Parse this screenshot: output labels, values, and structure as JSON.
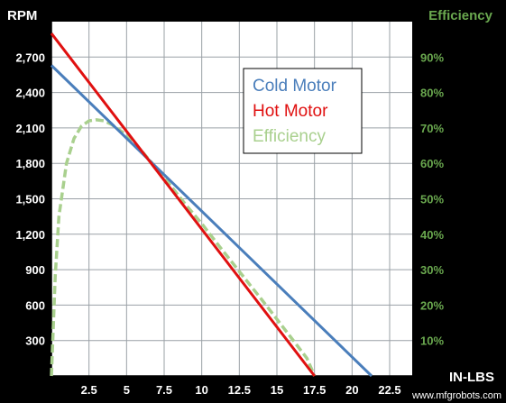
{
  "chart_data": {
    "type": "line",
    "title": "",
    "xlabel": "IN-LBS",
    "ylabel": "RPM",
    "y2label": "Efficiency",
    "xlim": [
      0,
      24
    ],
    "ylim": [
      0,
      3000
    ],
    "y2lim": [
      0,
      100
    ],
    "x_ticks": [
      "2.5",
      "5",
      "7.5",
      "10",
      "12.5",
      "15",
      "17.5",
      "20",
      "22.5"
    ],
    "y_ticks": [
      "300",
      "600",
      "900",
      "1,200",
      "1,500",
      "1,800",
      "2,100",
      "2,400",
      "2,700"
    ],
    "y2_ticks": [
      "10%",
      "20%",
      "30%",
      "40%",
      "50%",
      "60%",
      "70%",
      "80%",
      "90%"
    ],
    "grid": true,
    "legend_position": "top-right",
    "series": [
      {
        "name": "Cold Motor",
        "color": "#4a7ebb",
        "axis": "left",
        "x": [
          0,
          21.3
        ],
        "y": [
          2630,
          0
        ]
      },
      {
        "name": "Hot Motor",
        "color": "#e01010",
        "axis": "left",
        "x": [
          0,
          17.5
        ],
        "y": [
          2900,
          0
        ]
      },
      {
        "name": "Efficiency",
        "color": "#a9d08e",
        "axis": "right",
        "dashed": true,
        "x": [
          0,
          0.25,
          0.5,
          1,
          1.5,
          2,
          2.5,
          3,
          3.5,
          4,
          5,
          6,
          7.5,
          9,
          10,
          11,
          12.5,
          14,
          15,
          16,
          17,
          17.5
        ],
        "y": [
          0,
          28,
          45,
          60,
          67,
          70.5,
          72,
          72.3,
          72,
          71,
          68,
          63.5,
          56,
          48,
          43,
          37.5,
          29.5,
          21.5,
          16,
          10.5,
          5,
          0
        ]
      }
    ]
  },
  "watermark": "www.mfgrobots.com"
}
